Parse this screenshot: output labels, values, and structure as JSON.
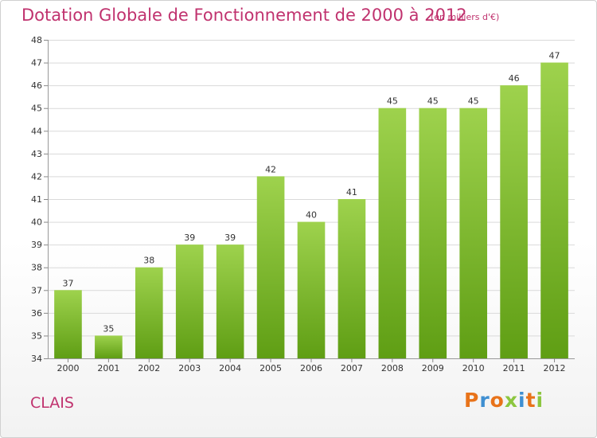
{
  "header": {
    "title": "Dotation Globale de Fonctionnement de 2000 à 2012",
    "unit": "(en milliers d'€)"
  },
  "footer": {
    "commune": "CLAIS",
    "brand": "Proxiti"
  },
  "colors": {
    "bar_light": "#9ed24d",
    "bar_dark": "#5f9e14",
    "title": "#c0326e",
    "grid": "#d9d9d9"
  },
  "chart_data": {
    "type": "bar",
    "title": "Dotation Globale de Fonctionnement de 2000 à 2012",
    "subtitle": "(en milliers d'€)",
    "xlabel": "",
    "ylabel": "",
    "categories": [
      "2000",
      "2001",
      "2002",
      "2003",
      "2004",
      "2005",
      "2006",
      "2007",
      "2008",
      "2009",
      "2010",
      "2011",
      "2012"
    ],
    "values": [
      37,
      35,
      38,
      39,
      39,
      42,
      40,
      41,
      45,
      45,
      45,
      46,
      47
    ],
    "ylim": [
      34,
      48
    ],
    "yticks": [
      34,
      35,
      36,
      37,
      38,
      39,
      40,
      41,
      42,
      43,
      44,
      45,
      46,
      47,
      48
    ],
    "grid": true,
    "legend": "none"
  }
}
